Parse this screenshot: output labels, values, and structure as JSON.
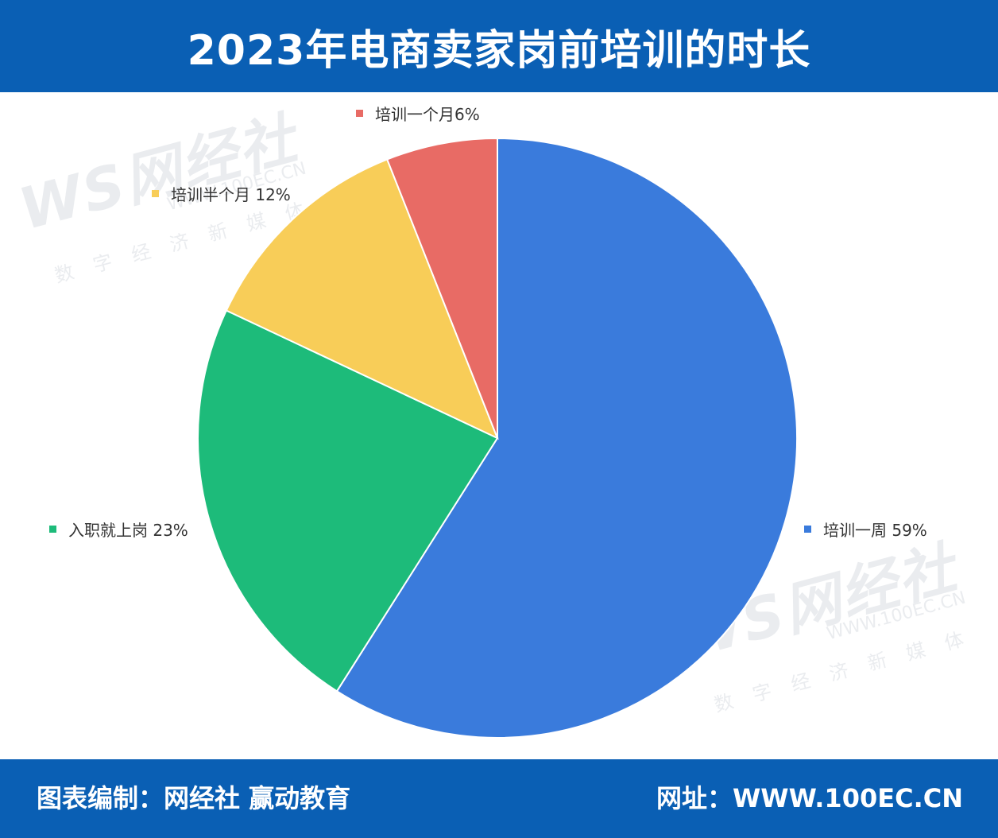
{
  "header": {
    "title": "2023年电商卖家岗前培训的时长"
  },
  "footer": {
    "left": "图表编制：网经社 赢动教育",
    "right": "网址：WWW.100EC.CN"
  },
  "watermark": {
    "logo": "WS网经社",
    "site": "WWW.100EC.CN",
    "tag": "数字经济新媒体"
  },
  "chart_data": {
    "type": "pie",
    "title": "2023年电商卖家岗前培训的时长",
    "slices": [
      {
        "label": "培训一周",
        "value": 59,
        "display": "培训一周 59%",
        "color": "#3a7bdc"
      },
      {
        "label": "入职就上岗",
        "value": 23,
        "display": "入职就上岗 23%",
        "color": "#1dbb7a"
      },
      {
        "label": "培训半个月",
        "value": 12,
        "display": "培训半个月 12%",
        "color": "#f8cd58"
      },
      {
        "label": "培训一个月",
        "value": 6,
        "display": "培训一个月6%",
        "color": "#e86b65"
      }
    ]
  }
}
